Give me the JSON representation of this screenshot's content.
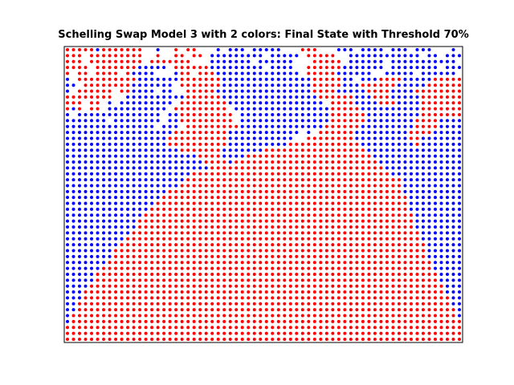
{
  "chart_data": {
    "type": "scatter",
    "title": "Schelling Swap Model 3 with 2 colors: Final State with Threshold 70%",
    "xlabel": "",
    "ylabel": "",
    "grid": false,
    "axes_visible": false,
    "cols": 66,
    "rows": 50,
    "series": [
      {
        "color": "#ff0000",
        "color_name": "red"
      },
      {
        "color": "#0000ff",
        "color_name": "blue"
      }
    ],
    "grid_rows": [
      "RRRRRBRRRRRRR..B..R.RR...B.BBB.BBBBB...RRR...BBB.BBBB.BBB.BBB...B.",
      "RRR.RRRRRRRRR..R..RR.RR.BBBBBBBBB.BBBBB.RRRRR..BBBBBBBBBBBB.BB.BBB",
      "RRR.RRRRRRRRR.RRRRRRR...BBBBBBB.BBBBBB...RRRRR.BBBBBB.BBBBBBBBBBB.",
      "RRRR.RRRRRRRBBBBB.RRRRRRBBBBBBBBB.BBBB..RRRRRRBBBBBBB.BBBBBBBB.BBB",
      "R.RR.RRRR.RBBBB...BRR.RRRBBBBBBBBBBBBBB.RRRRRBBBBBB..BBBBB.BBBBBB.",
      "B.RRRRRRRRRRBBBBBBBRRRRRRRBBBBBBBBBBBBBBBRRRRRBB.BBBRRRRBBBBBRRRRR",
      "BB.RRRRRRRRBBBBBBB.RRRRRRRBBBBBBBBBBBBBBBRRRRRBBBRRRRRRBBBBBRRRRRR",
      "B.RRRRRR.RRBBBB.BB..RRRRRBBBBBBBBBBBBBBBBRRRRBBBBBRRRRBBBBRRRRRRRR",
      "RRRRRRRR..BBBBBBBBBBRRRRRRBBBBBBBBBBBBBBBBRRRRRRBBBRRRBBBBBRRRRRRR",
      "RRR.RR.B.BBBBBBBBB.RRRRRRRRBBBBBBBBBBBBBBBB.RRRRBBBBRRRBBBBRRRRRRR",
      "RBR.RR.BBBBBBBBBB.RRRRRRRRR.BBBBBBBBBBBBBBBBRRRRRBBBBBBBBBBRRRRRRR",
      "B.BBBBBBBBBBBBBB.BBRRRRRRRRR.BBBBBBBBBBBBBBBRRRRRRBBBBBBBBBRRRRRRR",
      "BBBBBBB.BBBBBBBB.BBRRRRRRRRR.BBBBBBBBBBBBBBBRRRRRRBBBBBBBBRRRRBBBB",
      "BBBBBBBBBBBBBBB.BBB.RRRRRRRRRBBBBBBBBBBBBBBRRRRRRBBBBBBBBBRRRRBBBB",
      "BBBBBBBBBBBBBBBBBBRRRRRRRRRBBBBBBBBBBBB.B.RRRRRRBBBBBBBBBRRRRBBBBB",
      "BBBBBBBBBBBBBBBBBRRRRRRRRRRBBBBBBBBBBB..RRRRRRRRBBBBBBBBBRRBBBBBBB",
      "BBBBBBBBBBBBBBBBBRRRRRRRRRRBBBBBBBBBBRRRRRRRRRRRRBBBBBBBBBRBBBBBBB",
      "BBBBBBBBBBBBBBBBBBBRRRRRRRBBBBBBBRRRRRRRRRRRRRRRRRBBBBBBBBBBBBBBBB",
      "BBBBBBBBBBBBBBBBBBBBBBRRRRBBBBRRRRRRRRRRRRRRRRRRRRRBBBBBBBBBBBBBBB",
      "BBBBBBBBBBBBBBBBBBBBBBBRRRRBRRRRRRRRRRRRRRRRRRRRRRRRBBBBBBBBBBBBBB",
      "BBBBBBBBBBBBBBBBBBBBBBBBRRRRRRRRRRRRRRRRRRRRRRRRRRRRRBBBBBBBBBBBBB",
      "BBBBBBBBBBBBBBBBBBBBBRRRRRRRRRRRRRRRRRRRRRRRRRRRRRRRRRBBBBBBBBBBBB",
      "BBBBBBBBBBBBBBBBBBBBRRRRRRRRRRRRRRRRRRRRRRRRRRRRRRRRRRRRBBBBBBBBBB",
      "BBBBBBBBBBBBBBBBBBBRRRRRRRRRRRRRRRRRRRRRRRRRRRRRRRRRRRRRBBBBBBBBBB",
      "BBBBBBBBBBBBBBBBBRRRRRRRRRRRRRRRRRRRRRRRRRRRRRRRRRRRRRRRBBBBBBBBBB",
      "BBBBBBBBBBBBBBBBRRRRRRRRRRRRRRRRRRRRRRRRRRRRRRRRRRRRRRRRRBBBBBBBBB",
      "BBBBBBBBBBBBBBBRRRRRRRRRRRRRRRRRRRRRRRRRRRRRRRRRRRRRRRRRRBBBBBBBBB",
      "BBBBBBBBBBBBBBRRRRRRRRRRRRRRRRRRRRRRRRRRRRRRRRRRRRRRRRRRRBBBBBBBBB",
      "BBBBBBBBBBBBBRRRRRRRRRRRRRRRRRRRRRRRRRRRRRRRRRRRRRRRRRRRRRBBBBBBBB",
      "BBBBBBBBBBBBRRRRRRRRRRRRRRRRRRRRRRRRRRRRRRRRRRRRRRRRRRRRRRBBBBBBBB",
      "BBBBBBBBBBBBRRRRRRRRRRRRRRRRRRRRRRRRRRRRRRRRRRRRRRRRRRRRRRBBBBBBBB",
      "BBBBBBBBBBBRRRRRRRRRRRRRRRRRRRRRRRRRRRRRRRRRRRRRRRRRRRRRRRRBBBBBBB",
      "BBBBBBBBBBRRRRRRRRRRRRRRRRRRRRRRRRRRRRRRRRRRRRRRRRRRRRRRRRRBBBBBBB",
      "BBBBBBBBBRRRRRRRRRRRRRRRRRRRRRRRRRRRRRRRRRRRRRRRRRRRRRRRRRRRBBBBBB",
      "BBBBBBBBRRRRRRRRRRRRRRRRRRRRRRRRRRRRRRRRRRRRRRRRRRRRRRRRRRRRBBBBBB",
      "BBBBBBBBRRRRRRRRRRRRRRRRRRRRRRRRRRRRRRRRRRRRRRRRRRRRRRRRRRRRBBBBBB",
      "BBBBBBBRRRRRRRRRRRRRRRRRRRRRRRRRRRRRRRRRRRRRRRRRRRRRRRRRRRRRRBBBBB",
      "BBBBBBRRRRRRRRRRRRRRRRRRRRRRRRRRRRRRRRRRRRRRRRRRRRRRRRRRRRRRRBBBBB",
      "BBBBBRRRRRRRRRRRRRRRRRRRRRRRRRRRRRRRRRRRRRRRRRRRRRRRRRRRRRRRRRBBBB",
      "BBBBBRRRRRRRRRRRRRRRRRRRRRRRRRRRRRRRRRRRRRRRRRRRRRRRRRRRRRRRRRBBBB",
      "BBBBRRRRRRRRRRRRRRRRRRRRRRRRRRRRRRRRRRRRRRRRRRRRRRRRRRRRRRRRRRRBBB",
      "BBBRRRRRRRRRRRRRRRRRRRRRRRRRRRRRRRRRRRRRRRRRRRRRRRRRRRRRRRRRRRRBBB",
      "BBBRRRRRRRRRRRRRRRRRRRRRRRRRRRRRRRRRRRRRRRRRRRRRRRRRRRRRRRRRRRRRBB",
      "BBRRRRRRRRRRRRRRRRRRRRRRRRRRRRRRRRRRRRRRRRRRRRRRRRRRRRRRRRRRRRRRBB",
      "BBRRRRRRRRRRRRRRRRRRRRRRRRRRRRRRRRRRRRRRRRRRRRRRRRRRRRRRRRRRRRRRRB",
      "BRRRRRRRRRRRRRRRRRRRRRRRRRRRRRRRRRRRRRRRRRRRRRRRRRRRRRRRRRRRRRRRRB",
      "BRRRRRRRRRRRRRRRRRRRRRRRRRRRRRRRRRRRRRRRRRRRRRRRRRRRRRRRRRRRRRRRRR",
      "RRRRRRRRRRRRRRRRRRRRRRRRRRRRRRRRRRRRRRRRRRRRRRRRRRRRRRRRRRRRRRRRRR",
      "RRRRRRRRRRRRRRRRRRRRRRRRRRRRRRRRRRRRRRRRRRRRRRRRRRRRRRRRRRRRRRRRRR",
      "RRRRRRRRRRRRRRRRRRRRRRRRRRRRRRRRRRRRRRRRRRRRRRRRRRRRRRRRRRRRRRRRRR"
    ]
  }
}
